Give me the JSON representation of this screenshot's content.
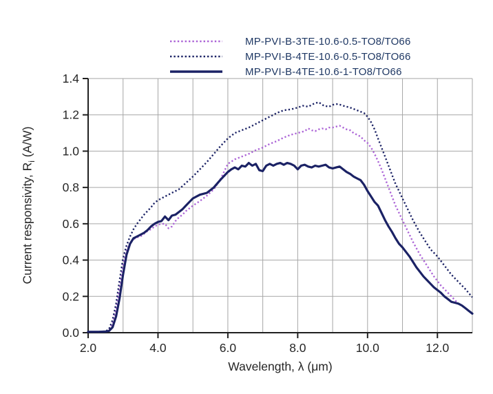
{
  "colors": {
    "violet_series": "#ab63d6",
    "navy_series": "#1b2265",
    "legend_text": "#1f3864",
    "grid": "#a6a6a6",
    "axis": "#1f1f1f",
    "tick_text": "#262626"
  },
  "chart_data": {
    "type": "line",
    "title": "",
    "xlabel": "Wavelength, λ (μm)",
    "ylabel": {
      "pre": "Current responsivity, R",
      "sub": "i",
      "post": " (A/W)"
    },
    "xlim": [
      2.0,
      13.0
    ],
    "ylim": [
      0.0,
      1.4
    ],
    "grid": true,
    "legend_position": "top",
    "x_tick_values": [
      2,
      4,
      6,
      8,
      10,
      12
    ],
    "x_tick_labels": [
      "2.0",
      "4.0",
      "6.0",
      "8.0",
      "10.0",
      "12.0"
    ],
    "x_grid_values": [
      3,
      4,
      5,
      6,
      7,
      8,
      9,
      10,
      11,
      12,
      13
    ],
    "y_tick_values": [
      0.0,
      0.2,
      0.4,
      0.6,
      0.8,
      1.0,
      1.2,
      1.4
    ],
    "y_tick_labels": [
      "0.0",
      "0.2",
      "0.4",
      "0.6",
      "0.8",
      "1.0",
      "1.2",
      "1.4"
    ],
    "y_grid_values": [
      0.2,
      0.4,
      0.6,
      0.8,
      1.0,
      1.2,
      1.4
    ],
    "series": [
      {
        "name": "MP-PVI-B-3TE-10.6-0.5-TO8/TO66",
        "style": "dotted",
        "color": "#ab63d6",
        "points": [
          [
            2.0,
            0.005
          ],
          [
            2.3,
            0.005
          ],
          [
            2.5,
            0.007
          ],
          [
            2.6,
            0.015
          ],
          [
            2.7,
            0.05
          ],
          [
            2.8,
            0.13
          ],
          [
            2.9,
            0.25
          ],
          [
            3.0,
            0.37
          ],
          [
            3.1,
            0.45
          ],
          [
            3.2,
            0.495
          ],
          [
            3.3,
            0.515
          ],
          [
            3.4,
            0.525
          ],
          [
            3.5,
            0.53
          ],
          [
            3.6,
            0.545
          ],
          [
            3.7,
            0.56
          ],
          [
            3.8,
            0.57
          ],
          [
            3.9,
            0.585
          ],
          [
            4.0,
            0.595
          ],
          [
            4.1,
            0.6
          ],
          [
            4.2,
            0.6
          ],
          [
            4.3,
            0.575
          ],
          [
            4.4,
            0.585
          ],
          [
            4.5,
            0.615
          ],
          [
            4.6,
            0.635
          ],
          [
            4.7,
            0.65
          ],
          [
            4.8,
            0.67
          ],
          [
            4.9,
            0.685
          ],
          [
            5.0,
            0.7
          ],
          [
            5.2,
            0.725
          ],
          [
            5.4,
            0.755
          ],
          [
            5.6,
            0.79
          ],
          [
            5.8,
            0.85
          ],
          [
            6.0,
            0.93
          ],
          [
            6.2,
            0.955
          ],
          [
            6.4,
            0.97
          ],
          [
            6.6,
            0.985
          ],
          [
            6.8,
            1.005
          ],
          [
            7.0,
            1.02
          ],
          [
            7.2,
            1.04
          ],
          [
            7.4,
            1.055
          ],
          [
            7.6,
            1.075
          ],
          [
            7.8,
            1.09
          ],
          [
            8.0,
            1.1
          ],
          [
            8.2,
            1.11
          ],
          [
            8.3,
            1.125
          ],
          [
            8.4,
            1.115
          ],
          [
            8.5,
            1.11
          ],
          [
            8.6,
            1.12
          ],
          [
            8.7,
            1.125
          ],
          [
            8.8,
            1.12
          ],
          [
            8.9,
            1.13
          ],
          [
            9.0,
            1.13
          ],
          [
            9.1,
            1.135
          ],
          [
            9.2,
            1.14
          ],
          [
            9.3,
            1.13
          ],
          [
            9.4,
            1.12
          ],
          [
            9.5,
            1.115
          ],
          [
            9.6,
            1.1
          ],
          [
            9.7,
            1.09
          ],
          [
            9.8,
            1.08
          ],
          [
            9.9,
            1.06
          ],
          [
            10.0,
            1.045
          ],
          [
            10.1,
            1.02
          ],
          [
            10.2,
            0.985
          ],
          [
            10.3,
            0.945
          ],
          [
            10.4,
            0.9
          ],
          [
            10.5,
            0.85
          ],
          [
            10.6,
            0.8
          ],
          [
            10.7,
            0.75
          ],
          [
            10.8,
            0.7
          ],
          [
            10.9,
            0.66
          ],
          [
            11.0,
            0.62
          ],
          [
            11.1,
            0.58
          ],
          [
            11.2,
            0.54
          ],
          [
            11.3,
            0.5
          ],
          [
            11.4,
            0.465
          ],
          [
            11.5,
            0.43
          ],
          [
            11.6,
            0.4
          ],
          [
            11.7,
            0.37
          ],
          [
            11.8,
            0.34
          ],
          [
            11.9,
            0.31
          ],
          [
            12.0,
            0.285
          ],
          [
            12.1,
            0.26
          ],
          [
            12.2,
            0.24
          ],
          [
            12.3,
            0.22
          ],
          [
            12.4,
            0.2
          ],
          [
            12.5,
            0.18
          ],
          [
            12.55,
            0.17
          ]
        ]
      },
      {
        "name": "MP-PVI-B-4TE-10.6-0.5-TO8/TO66",
        "style": "dotted",
        "color": "#1b2265",
        "points": [
          [
            2.0,
            0.005
          ],
          [
            2.3,
            0.005
          ],
          [
            2.5,
            0.008
          ],
          [
            2.6,
            0.02
          ],
          [
            2.7,
            0.07
          ],
          [
            2.8,
            0.16
          ],
          [
            2.9,
            0.29
          ],
          [
            3.0,
            0.41
          ],
          [
            3.1,
            0.48
          ],
          [
            3.2,
            0.53
          ],
          [
            3.3,
            0.57
          ],
          [
            3.4,
            0.6
          ],
          [
            3.5,
            0.625
          ],
          [
            3.6,
            0.65
          ],
          [
            3.7,
            0.67
          ],
          [
            3.8,
            0.69
          ],
          [
            3.9,
            0.715
          ],
          [
            4.0,
            0.73
          ],
          [
            4.2,
            0.75
          ],
          [
            4.4,
            0.77
          ],
          [
            4.6,
            0.79
          ],
          [
            4.8,
            0.825
          ],
          [
            5.0,
            0.86
          ],
          [
            5.2,
            0.9
          ],
          [
            5.4,
            0.94
          ],
          [
            5.6,
            0.985
          ],
          [
            5.8,
            1.03
          ],
          [
            6.0,
            1.07
          ],
          [
            6.2,
            1.1
          ],
          [
            6.4,
            1.115
          ],
          [
            6.6,
            1.13
          ],
          [
            6.8,
            1.15
          ],
          [
            7.0,
            1.17
          ],
          [
            7.2,
            1.19
          ],
          [
            7.4,
            1.21
          ],
          [
            7.6,
            1.225
          ],
          [
            7.8,
            1.23
          ],
          [
            8.0,
            1.24
          ],
          [
            8.15,
            1.25
          ],
          [
            8.3,
            1.245
          ],
          [
            8.45,
            1.26
          ],
          [
            8.6,
            1.27
          ],
          [
            8.75,
            1.25
          ],
          [
            8.9,
            1.245
          ],
          [
            9.0,
            1.255
          ],
          [
            9.15,
            1.26
          ],
          [
            9.3,
            1.25
          ],
          [
            9.5,
            1.24
          ],
          [
            9.7,
            1.225
          ],
          [
            9.9,
            1.21
          ],
          [
            10.0,
            1.19
          ],
          [
            10.1,
            1.16
          ],
          [
            10.2,
            1.12
          ],
          [
            10.3,
            1.07
          ],
          [
            10.4,
            1.02
          ],
          [
            10.5,
            0.97
          ],
          [
            10.6,
            0.92
          ],
          [
            10.7,
            0.87
          ],
          [
            10.8,
            0.82
          ],
          [
            10.9,
            0.78
          ],
          [
            11.0,
            0.74
          ],
          [
            11.1,
            0.7
          ],
          [
            11.2,
            0.66
          ],
          [
            11.3,
            0.62
          ],
          [
            11.4,
            0.585
          ],
          [
            11.5,
            0.55
          ],
          [
            11.6,
            0.52
          ],
          [
            11.7,
            0.49
          ],
          [
            11.8,
            0.46
          ],
          [
            11.9,
            0.44
          ],
          [
            12.0,
            0.42
          ],
          [
            12.2,
            0.37
          ],
          [
            12.4,
            0.32
          ],
          [
            12.6,
            0.28
          ],
          [
            12.8,
            0.24
          ],
          [
            13.0,
            0.195
          ]
        ]
      },
      {
        "name": "MP-PVI-B-4TE-10.6-1-TO8/TO66",
        "style": "solid",
        "color": "#1b2265",
        "points": [
          [
            2.0,
            0.005
          ],
          [
            2.3,
            0.005
          ],
          [
            2.5,
            0.006
          ],
          [
            2.6,
            0.01
          ],
          [
            2.7,
            0.03
          ],
          [
            2.8,
            0.09
          ],
          [
            2.9,
            0.19
          ],
          [
            3.0,
            0.32
          ],
          [
            3.1,
            0.43
          ],
          [
            3.2,
            0.49
          ],
          [
            3.3,
            0.52
          ],
          [
            3.45,
            0.535
          ],
          [
            3.6,
            0.55
          ],
          [
            3.7,
            0.565
          ],
          [
            3.8,
            0.585
          ],
          [
            3.9,
            0.6
          ],
          [
            4.0,
            0.61
          ],
          [
            4.1,
            0.615
          ],
          [
            4.2,
            0.64
          ],
          [
            4.3,
            0.62
          ],
          [
            4.4,
            0.645
          ],
          [
            4.5,
            0.65
          ],
          [
            4.6,
            0.665
          ],
          [
            4.7,
            0.68
          ],
          [
            4.8,
            0.7
          ],
          [
            4.9,
            0.72
          ],
          [
            5.0,
            0.74
          ],
          [
            5.2,
            0.76
          ],
          [
            5.4,
            0.77
          ],
          [
            5.6,
            0.8
          ],
          [
            5.8,
            0.845
          ],
          [
            6.0,
            0.885
          ],
          [
            6.1,
            0.9
          ],
          [
            6.2,
            0.91
          ],
          [
            6.3,
            0.9
          ],
          [
            6.4,
            0.92
          ],
          [
            6.5,
            0.915
          ],
          [
            6.6,
            0.935
          ],
          [
            6.7,
            0.92
          ],
          [
            6.8,
            0.93
          ],
          [
            6.9,
            0.895
          ],
          [
            7.0,
            0.89
          ],
          [
            7.1,
            0.92
          ],
          [
            7.2,
            0.93
          ],
          [
            7.3,
            0.92
          ],
          [
            7.4,
            0.93
          ],
          [
            7.5,
            0.935
          ],
          [
            7.6,
            0.925
          ],
          [
            7.7,
            0.935
          ],
          [
            7.8,
            0.93
          ],
          [
            7.9,
            0.92
          ],
          [
            8.0,
            0.9
          ],
          [
            8.1,
            0.92
          ],
          [
            8.2,
            0.925
          ],
          [
            8.3,
            0.915
          ],
          [
            8.4,
            0.91
          ],
          [
            8.5,
            0.92
          ],
          [
            8.6,
            0.915
          ],
          [
            8.7,
            0.92
          ],
          [
            8.8,
            0.925
          ],
          [
            8.9,
            0.91
          ],
          [
            9.0,
            0.905
          ],
          [
            9.1,
            0.91
          ],
          [
            9.2,
            0.915
          ],
          [
            9.3,
            0.9
          ],
          [
            9.4,
            0.885
          ],
          [
            9.5,
            0.875
          ],
          [
            9.6,
            0.86
          ],
          [
            9.7,
            0.85
          ],
          [
            9.8,
            0.84
          ],
          [
            9.9,
            0.815
          ],
          [
            10.0,
            0.78
          ],
          [
            10.1,
            0.75
          ],
          [
            10.2,
            0.72
          ],
          [
            10.3,
            0.7
          ],
          [
            10.4,
            0.66
          ],
          [
            10.5,
            0.62
          ],
          [
            10.6,
            0.585
          ],
          [
            10.7,
            0.555
          ],
          [
            10.8,
            0.52
          ],
          [
            10.9,
            0.49
          ],
          [
            11.0,
            0.47
          ],
          [
            11.1,
            0.445
          ],
          [
            11.2,
            0.42
          ],
          [
            11.3,
            0.39
          ],
          [
            11.4,
            0.36
          ],
          [
            11.5,
            0.335
          ],
          [
            11.6,
            0.31
          ],
          [
            11.7,
            0.29
          ],
          [
            11.8,
            0.27
          ],
          [
            11.9,
            0.25
          ],
          [
            12.0,
            0.235
          ],
          [
            12.1,
            0.22
          ],
          [
            12.2,
            0.2
          ],
          [
            12.3,
            0.185
          ],
          [
            12.4,
            0.17
          ],
          [
            12.5,
            0.165
          ],
          [
            12.6,
            0.16
          ],
          [
            12.7,
            0.15
          ],
          [
            12.8,
            0.135
          ],
          [
            12.9,
            0.12
          ],
          [
            13.0,
            0.105
          ]
        ]
      }
    ]
  }
}
